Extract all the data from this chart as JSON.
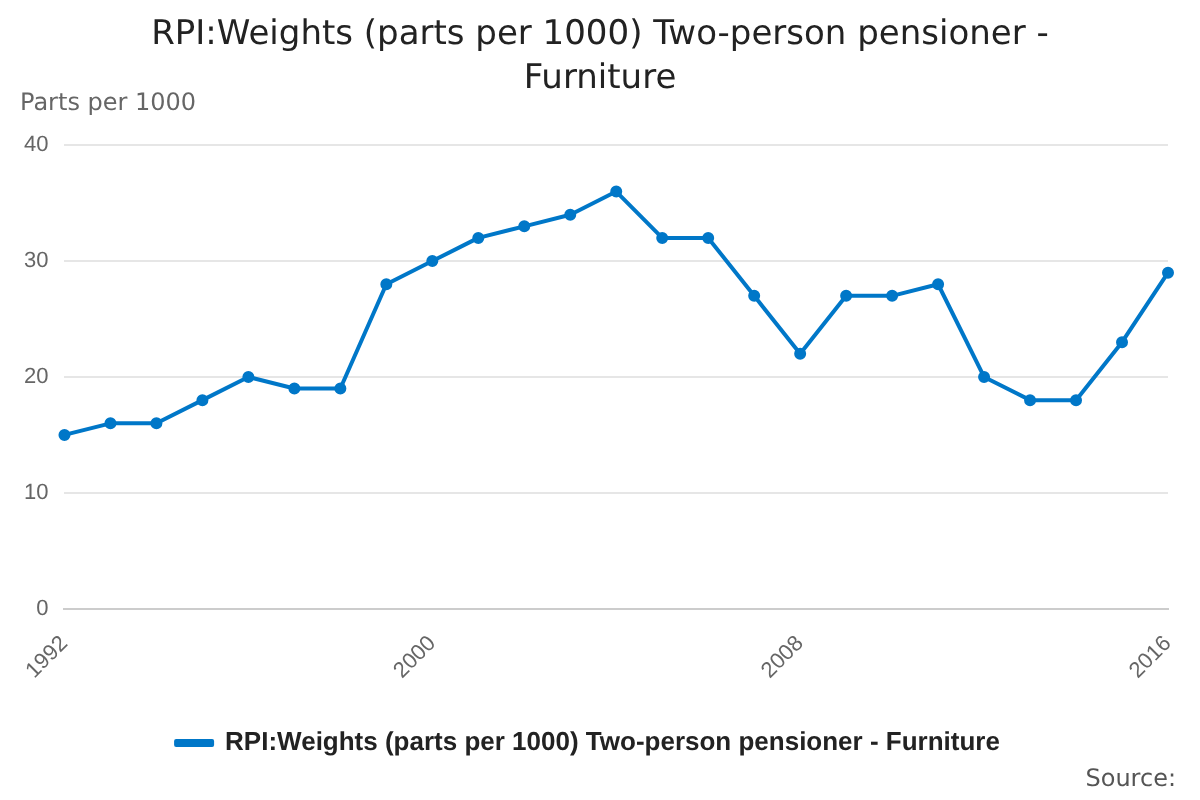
{
  "chart_data": {
    "type": "line",
    "title": "RPI:Weights (parts per 1000) Two-person pensioner - Furniture",
    "ylabel": "Parts per 1000",
    "x": [
      1992,
      1993,
      1994,
      1995,
      1996,
      1997,
      1998,
      1999,
      2000,
      2001,
      2002,
      2003,
      2004,
      2005,
      2006,
      2007,
      2008,
      2009,
      2010,
      2011,
      2012,
      2013,
      2014,
      2015,
      2016
    ],
    "series": [
      {
        "name": "RPI:Weights (parts per 1000) Two-person pensioner - Furniture",
        "color": "#0077c8",
        "values": [
          15,
          16,
          16,
          18,
          20,
          19,
          19,
          28,
          30,
          32,
          33,
          34,
          36,
          32,
          32,
          27,
          22,
          27,
          27,
          28,
          20,
          18,
          18,
          23,
          29
        ]
      }
    ],
    "xlim": [
      1992,
      2016
    ],
    "xticks": [
      1992,
      2000,
      2008,
      2016
    ],
    "ylim": [
      0,
      40
    ],
    "yticks": [
      0,
      10,
      20,
      30,
      40
    ],
    "grid": "y",
    "legend": "bottom",
    "marker": "circle",
    "line_style": "solid",
    "annotations": [
      "Source:"
    ]
  }
}
